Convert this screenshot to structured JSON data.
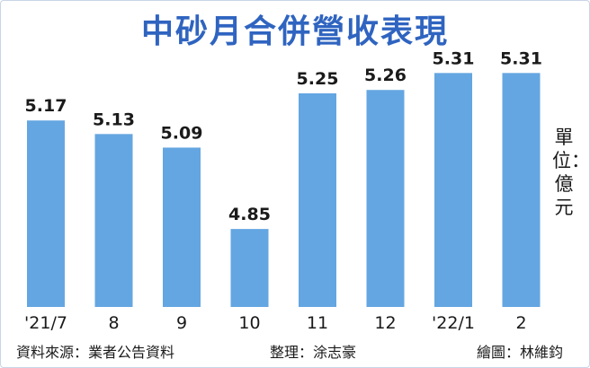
{
  "chart_data": {
    "type": "bar",
    "title": "中砂月合併營收表現",
    "categories": [
      "'21/7",
      "8",
      "9",
      "10",
      "11",
      "12",
      "'22/1",
      "2"
    ],
    "values": [
      5.17,
      5.13,
      5.09,
      4.85,
      5.25,
      5.26,
      5.31,
      5.31
    ],
    "value_labels": [
      "5.17",
      "5.13",
      "5.09",
      "4.85",
      "5.25",
      "5.26",
      "5.31",
      "5.31"
    ],
    "unit_label": "單位：億元",
    "ylim": [
      4.62,
      5.34
    ],
    "grid": false,
    "bar_color": "#64a6e1"
  },
  "footer": {
    "source": "資料來源：業者公告資料",
    "editor": "整理：涂志豪",
    "graphic": "繪圖：林維鈞"
  }
}
